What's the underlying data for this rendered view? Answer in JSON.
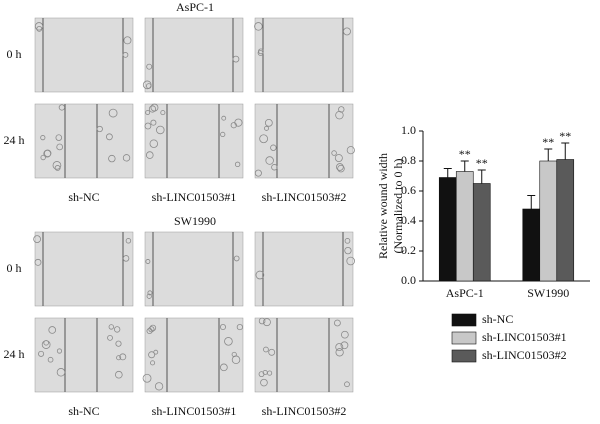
{
  "figure": {
    "panels": [
      {
        "title": "AsPC-1",
        "rows": [
          "0 h",
          "24 h"
        ],
        "columns": [
          "sh-NC",
          "sh-LINC01503#1",
          "sh-LINC01503#2"
        ]
      },
      {
        "title": "SW1990",
        "rows": [
          "0 h",
          "24 h"
        ],
        "columns": [
          "sh-NC",
          "sh-LINC01503#1",
          "sh-LINC01503#2"
        ]
      }
    ]
  },
  "chart_data": {
    "type": "bar",
    "ylabel": [
      "Relative wound width",
      "(Normalized to 0 h)"
    ],
    "categories": [
      "AsPC-1",
      "SW1990"
    ],
    "series": [
      {
        "name": "sh-NC",
        "color": "#111111",
        "values": [
          0.69,
          0.48
        ],
        "errors": [
          0.06,
          0.09
        ],
        "annotations": [
          null,
          null
        ]
      },
      {
        "name": "sh-LINC01503#1",
        "color": "#c8c8c8",
        "values": [
          0.73,
          0.8
        ],
        "errors": [
          0.07,
          0.08
        ],
        "annotations": [
          "**",
          "**"
        ]
      },
      {
        "name": "sh-LINC01503#2",
        "color": "#5a5a5a",
        "values": [
          0.65,
          0.81
        ],
        "errors": [
          0.09,
          0.11
        ],
        "annotations": [
          "**",
          "**"
        ]
      }
    ],
    "ylim": [
      0,
      1.0
    ],
    "yticks": [
      {
        "value": 0,
        "label": "0.0"
      },
      {
        "value": 0.2,
        "label": "0.2"
      },
      {
        "value": 0.4,
        "label": "0.4"
      },
      {
        "value": 0.6,
        "label": "0.6"
      },
      {
        "value": 0.8,
        "label": "0.8"
      },
      {
        "value": 1.0,
        "label": "1.0"
      }
    ]
  }
}
